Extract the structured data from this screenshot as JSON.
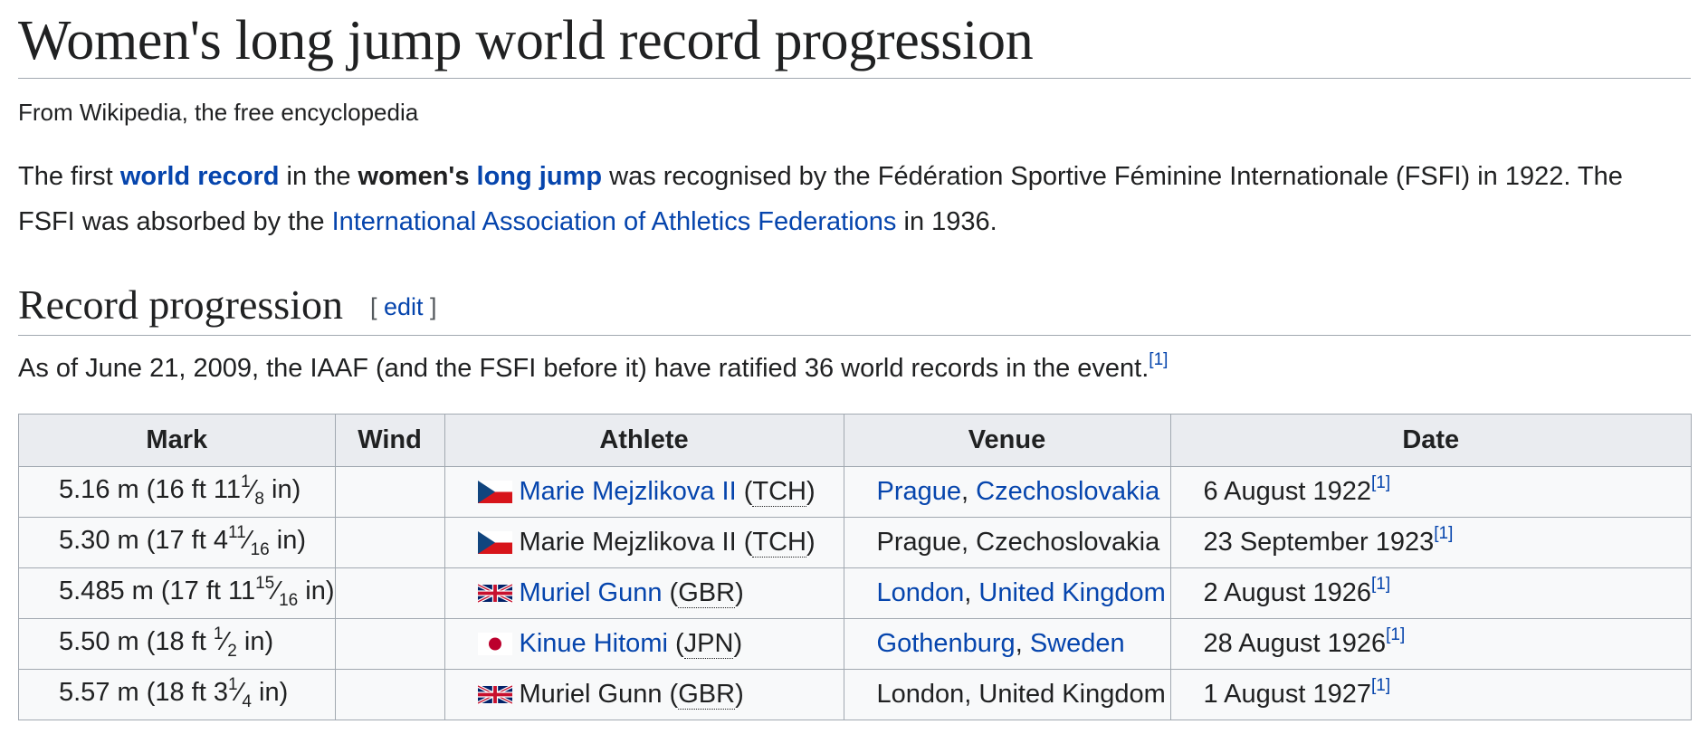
{
  "article": {
    "title": "Women's long jump world record progression",
    "tagline": "From Wikipedia, the free encyclopedia",
    "intro": {
      "p1": "The first ",
      "link_world_record": "world record",
      "p2": " in the ",
      "bold_womens": "women's",
      "link_long_jump": "long jump",
      "p3": " was recognised by the Fédération Sportive Féminine Internationale (FSFI) in 1922. The FSFI was absorbed by the ",
      "link_iaaf": "International Association of Athletics Federations",
      "p4": " in 1936."
    },
    "section": {
      "heading": "Record progression",
      "edit_open": "[ ",
      "edit_label": "edit",
      "edit_close": " ]",
      "as_of": "As of June 21, 2009, the IAAF (and the FSFI before it) have ratified 36 world records in the event.",
      "as_of_ref": "[1]"
    }
  },
  "table": {
    "headers": [
      "Mark",
      "Wind",
      "Athlete",
      "Venue",
      "Date"
    ],
    "rows": [
      {
        "mark_main": "5.16 m (16 ft 11",
        "mark_num": "1",
        "mark_den": "8",
        "mark_end": " in)",
        "wind": "",
        "flag": "czechoslovakia-flag",
        "athlete": "Marie Mejzlikova II",
        "athlete_link": true,
        "country": "TCH",
        "venue_city": "Prague",
        "venue_country": "Czechoslovakia",
        "venue_link": true,
        "date": "6 August 1922",
        "ref": "[1]"
      },
      {
        "mark_main": "5.30 m (17 ft 4",
        "mark_num": "11",
        "mark_den": "16",
        "mark_end": " in)",
        "wind": "",
        "flag": "czechoslovakia-flag",
        "athlete": "Marie Mejzlikova II",
        "athlete_link": false,
        "country": "TCH",
        "venue_city": "Prague",
        "venue_country": "Czechoslovakia",
        "venue_link": false,
        "date": "23 September 1923",
        "ref": "[1]"
      },
      {
        "mark_main": "5.485 m (17 ft 11",
        "mark_num": "15",
        "mark_den": "16",
        "mark_end": " in)",
        "wind": "",
        "flag": "uk-flag",
        "athlete": "Muriel Gunn",
        "athlete_link": true,
        "country": "GBR",
        "venue_city": "London",
        "venue_country": "United Kingdom",
        "venue_link": true,
        "date": "2 August 1926",
        "ref": "[1]"
      },
      {
        "mark_main": "5.50 m (18 ft ",
        "mark_num": "1",
        "mark_den": "2",
        "mark_end": " in)",
        "wind": "",
        "flag": "japan-flag",
        "athlete": "Kinue Hitomi",
        "athlete_link": true,
        "country": "JPN",
        "venue_city": "Gothenburg",
        "venue_country": "Sweden",
        "venue_link": true,
        "date": "28 August 1926",
        "ref": "[1]"
      },
      {
        "mark_main": "5.57 m (18 ft 3",
        "mark_num": "1",
        "mark_den": "4",
        "mark_end": " in)",
        "wind": "",
        "flag": "uk-flag",
        "athlete": "Muriel Gunn",
        "athlete_link": false,
        "country": "GBR",
        "venue_city": "London",
        "venue_country": "United Kingdom",
        "venue_link": false,
        "date": "1 August 1927",
        "ref": "[1]"
      }
    ]
  },
  "colors": {
    "link": "#0645ad",
    "text": "#202122",
    "header_bg": "#eaecf0",
    "cell_bg": "#f8f9fa",
    "border": "#a2a9b1"
  }
}
